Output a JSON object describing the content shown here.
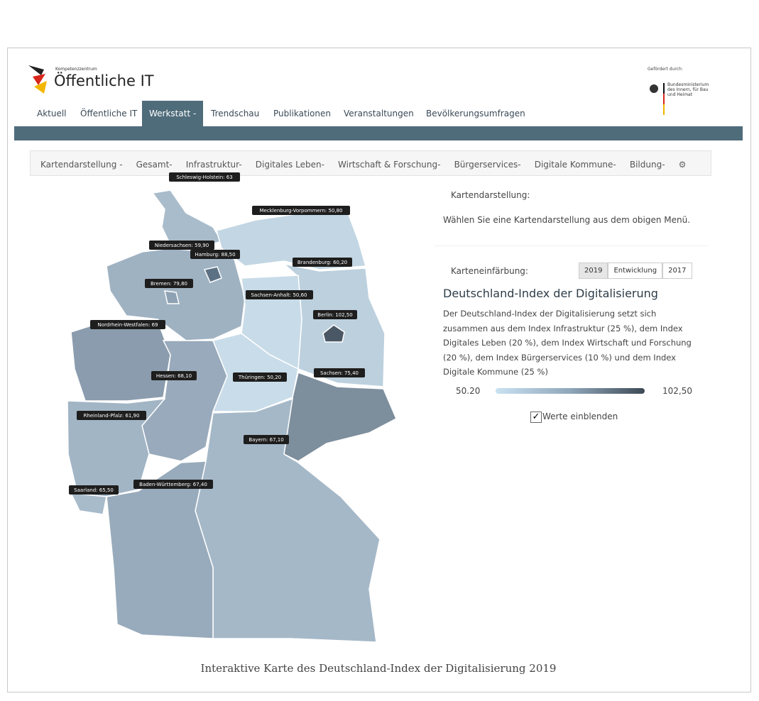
{
  "header": {
    "kicker": "Kompetenzzentrum",
    "logo": "Öffentliche IT",
    "funded_by": "Gefördert durch:",
    "ministry": [
      "Bundesministerium",
      "des Innern, für Bau",
      "und Heimat"
    ]
  },
  "nav": {
    "items": [
      "Aktuell",
      "Öffentliche IT",
      "Werkstatt -",
      "Trendschau",
      "Publikationen",
      "Veranstaltungen",
      "Bevölkerungsumfragen"
    ]
  },
  "submenu": {
    "items": [
      "Kartendarstellung -",
      "Gesamt-",
      "Infrastruktur-",
      "Digitales Leben-",
      "Wirtschaft & Forschung-",
      "Bürgerservices-",
      "Digitale Kommune-",
      "Bildung-"
    ]
  },
  "map": {
    "labels": [
      "Schleswig-Holstein: 63",
      "Mecklenburg-Vorpommern: 50,80",
      "Niedersachsen: 59,90",
      "Hamburg: 88,50",
      "Brandenburg: 60,20",
      "Bremen: 79,80",
      "Sachsen-Anhalt: 50,60",
      "Berlin: 102,50",
      "Nordrhein-Westfalen: 69",
      "Hessen: 68,10",
      "Thüringen: 50,20",
      "Sachsen: 75,40",
      "Rheinland-Pfalz: 61,90",
      "Bayern: 67,10",
      "Baden-Württemberg: 67,40",
      "Saarland: 65,50"
    ]
  },
  "sidebar": {
    "display_label": "Kartendarstellung:",
    "display_hint": "Wählen Sie eine Kartendarstellung aus dem obigen Menü.",
    "coloring_label": "Karteneinfärbung:",
    "buttons": [
      "2019",
      "Entwicklung",
      "2017"
    ],
    "heading": "Deutschland-Index der Digitalisierung",
    "description": [
      "Der Deutschland-Index der Digitalisierung setzt sich",
      "zusammen aus dem Index Infrastruktur (25 %), dem Index",
      "Digitales Leben (20 %), dem Index Wirtschaft und Forschung",
      "(20 %), dem Index Bürgerservices (10 %) und dem Index",
      "Digitale Kommune (25 %)"
    ],
    "scale_min": "50.20",
    "scale_max": "102,50",
    "checkbox": "Werte einblenden"
  },
  "caption": "Interaktive Karte des Deutschland-Index der Digitalisierung 2019"
}
